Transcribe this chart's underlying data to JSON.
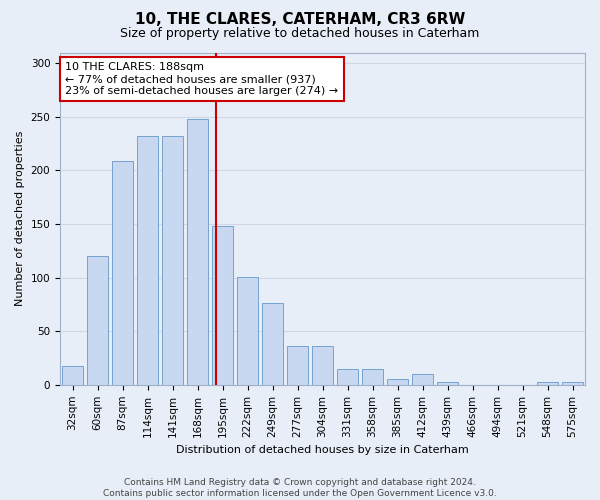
{
  "title": "10, THE CLARES, CATERHAM, CR3 6RW",
  "subtitle": "Size of property relative to detached houses in Caterham",
  "xlabel": "Distribution of detached houses by size in Caterham",
  "ylabel": "Number of detached properties",
  "footer_line1": "Contains HM Land Registry data © Crown copyright and database right 2024.",
  "footer_line2": "Contains public sector information licensed under the Open Government Licence v3.0.",
  "bar_labels": [
    "32sqm",
    "60sqm",
    "87sqm",
    "114sqm",
    "141sqm",
    "168sqm",
    "195sqm",
    "222sqm",
    "249sqm",
    "277sqm",
    "304sqm",
    "331sqm",
    "358sqm",
    "385sqm",
    "412sqm",
    "439sqm",
    "466sqm",
    "494sqm",
    "521sqm",
    "548sqm",
    "575sqm"
  ],
  "bar_values": [
    18,
    120,
    209,
    232,
    232,
    248,
    148,
    101,
    76,
    36,
    36,
    15,
    15,
    5,
    10,
    3,
    0,
    0,
    0,
    3,
    3
  ],
  "bar_color": "#c8d8f0",
  "bar_edge_color": "#6699cc",
  "grid_color": "#d0d8e8",
  "bg_color": "#e8eef8",
  "property_label": "10 THE CLARES: 188sqm",
  "annotation_line1": "← 77% of detached houses are smaller (937)",
  "annotation_line2": "23% of semi-detached houses are larger (274) →",
  "vline_color": "#cc0000",
  "annotation_box_color": "#ffffff",
  "annotation_box_edge": "#cc0000",
  "vline_x_index": 5.74,
  "ylim": [
    0,
    310
  ],
  "yticks": [
    0,
    50,
    100,
    150,
    200,
    250,
    300
  ],
  "title_fontsize": 11,
  "subtitle_fontsize": 9,
  "xlabel_fontsize": 8,
  "ylabel_fontsize": 8,
  "tick_fontsize": 7.5,
  "footer_fontsize": 6.5,
  "annotation_fontsize": 8
}
